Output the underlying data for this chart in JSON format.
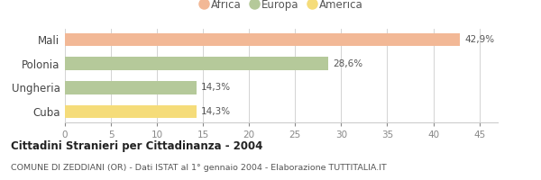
{
  "categories": [
    "Mali",
    "Polonia",
    "Ungheria",
    "Cuba"
  ],
  "values": [
    42.9,
    28.6,
    14.3,
    14.3
  ],
  "labels": [
    "42,9%",
    "28,6%",
    "14,3%",
    "14,3%"
  ],
  "bar_colors": [
    "#F2B896",
    "#B5C99A",
    "#B5C99A",
    "#F5DC7A"
  ],
  "legend_items": [
    {
      "label": "Africa",
      "color": "#F2B896"
    },
    {
      "label": "Europa",
      "color": "#B5C99A"
    },
    {
      "label": "America",
      "color": "#F5DC7A"
    }
  ],
  "xlim": [
    0,
    47
  ],
  "xticks": [
    0,
    5,
    10,
    15,
    20,
    25,
    30,
    35,
    40,
    45
  ],
  "title": "Cittadini Stranieri per Cittadinanza - 2004",
  "subtitle": "COMUNE DI ZEDDIANI (OR) - Dati ISTAT al 1° gennaio 2004 - Elaborazione TUTTITALIA.IT",
  "background_color": "#ffffff",
  "grid_color": "#cccccc"
}
